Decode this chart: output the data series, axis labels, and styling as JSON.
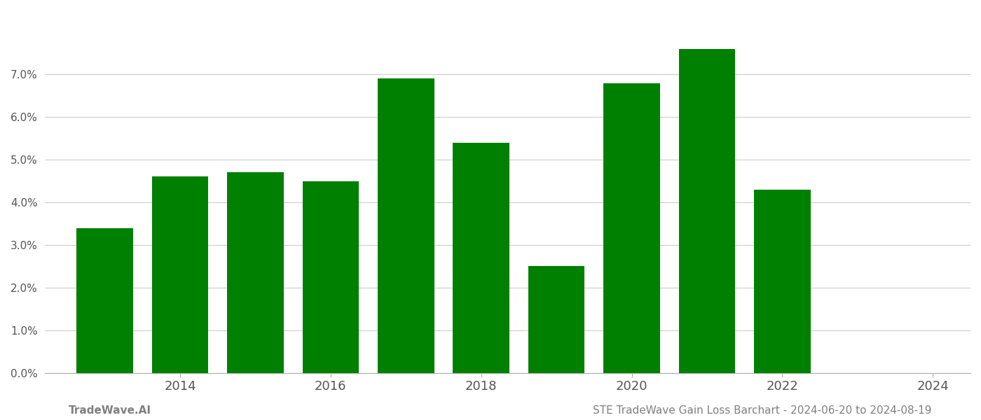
{
  "years": [
    2013,
    2014,
    2015,
    2016,
    2017,
    2018,
    2019,
    2020,
    2021,
    2022
  ],
  "values": [
    0.034,
    0.046,
    0.047,
    0.045,
    0.069,
    0.054,
    0.025,
    0.068,
    0.076,
    0.043
  ],
  "bar_color": "#008000",
  "background_color": "#ffffff",
  "grid_color": "#cccccc",
  "ylim": [
    0,
    0.085
  ],
  "yticks": [
    0.0,
    0.01,
    0.02,
    0.03,
    0.04,
    0.05,
    0.06,
    0.07
  ],
  "xtick_labels": [
    "2014",
    "2016",
    "2018",
    "2020",
    "2022",
    "2024"
  ],
  "xtick_positions": [
    2014,
    2016,
    2018,
    2020,
    2022,
    2024
  ],
  "xlim": [
    2012.2,
    2024.5
  ],
  "bar_width": 0.75,
  "footer_left": "TradeWave.AI",
  "footer_right": "STE TradeWave Gain Loss Barchart - 2024-06-20 to 2024-08-19",
  "footer_color": "#808080",
  "footer_fontsize": 11
}
